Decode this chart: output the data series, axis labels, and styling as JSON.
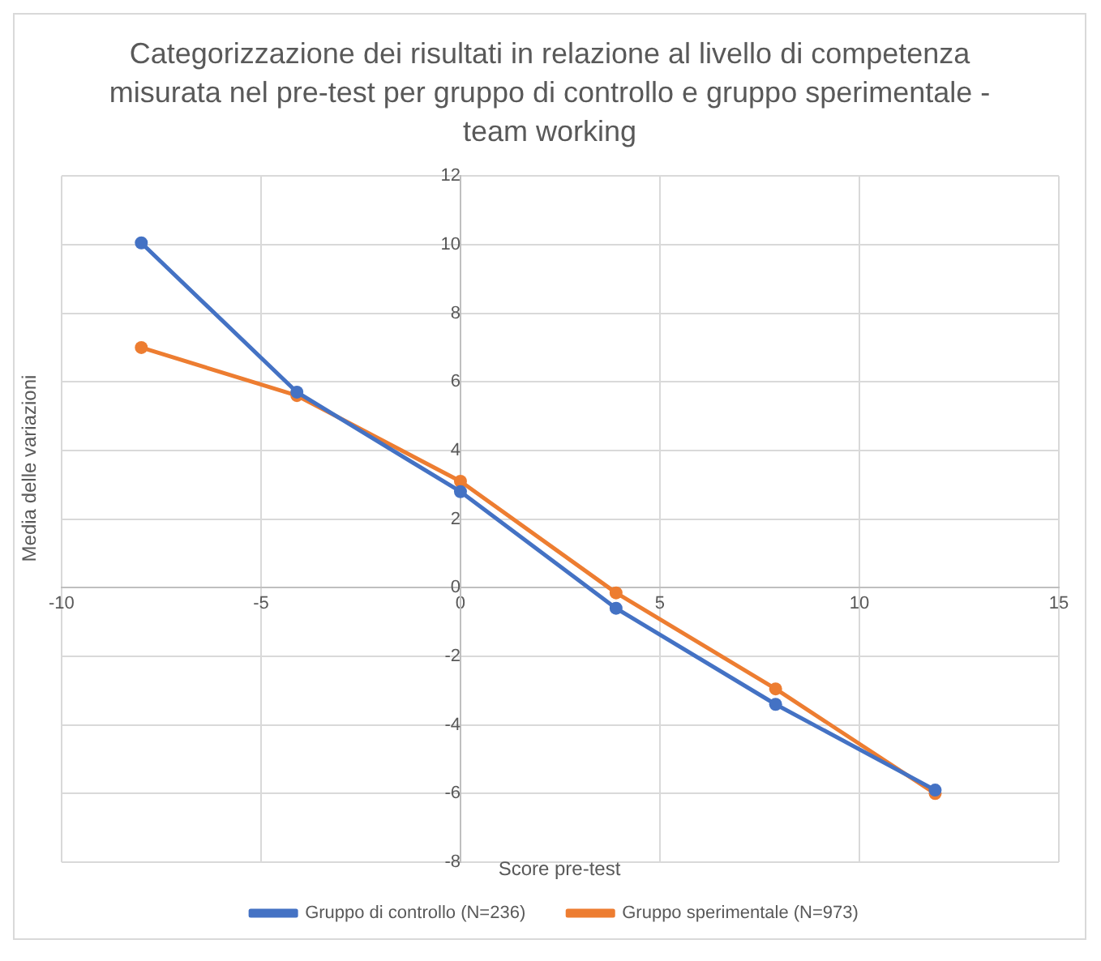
{
  "chart_data": {
    "type": "line",
    "title": "Categorizzazione dei risultati in relazione al livello di competenza misurata nel pre-test per gruppo di controllo e gruppo sperimentale - team working",
    "xlabel": "Score pre-test",
    "ylabel": "Media delle variazioni",
    "x": [
      -8,
      -4.1,
      0,
      3.9,
      7.9,
      11.9
    ],
    "series": [
      {
        "name": "Gruppo di controllo (N=236)",
        "color": "#4472c4",
        "values": [
          10.05,
          5.7,
          2.8,
          -0.6,
          -3.4,
          -5.9
        ]
      },
      {
        "name": "Gruppo sperimentale (N=973)",
        "color": "#ed7d31",
        "values": [
          7.0,
          5.6,
          3.1,
          -0.15,
          -2.95,
          -6.0
        ]
      }
    ],
    "xlim": [
      -10,
      15
    ],
    "xticks": [
      -10,
      -5,
      0,
      5,
      10,
      15
    ],
    "ylim": [
      -8,
      12
    ],
    "yticks": [
      -8,
      -6,
      -4,
      -2,
      0,
      2,
      4,
      6,
      8,
      10,
      12
    ],
    "grid": true,
    "legend": "bottom",
    "marker": "circle",
    "line_style": "solid"
  }
}
